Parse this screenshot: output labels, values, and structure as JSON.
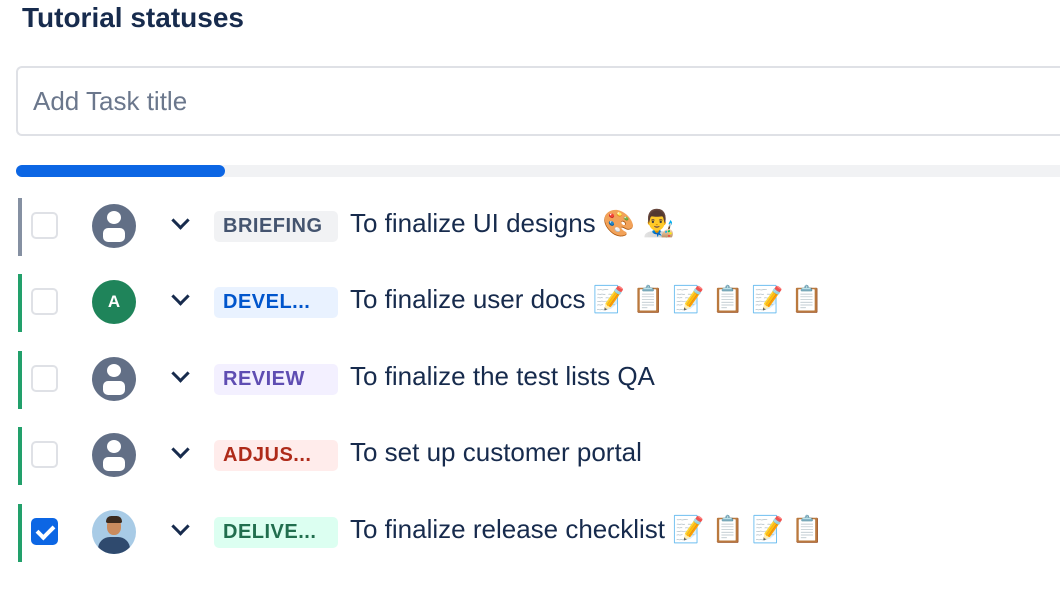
{
  "header": {
    "title": "Tutorial statuses"
  },
  "add_task": {
    "placeholder": "Add Task title",
    "value": ""
  },
  "progress": {
    "percent": 20,
    "color": "#0c66e4"
  },
  "tasks": [
    {
      "checked": false,
      "avatar": {
        "type": "default"
      },
      "status": "BRIEFING",
      "status_fg": "#44546f",
      "status_bg": "#f1f2f4",
      "bar_color": "#8590a2",
      "title": "To finalize UI designs 🎨 👨‍🎨"
    },
    {
      "checked": false,
      "avatar": {
        "type": "letter",
        "letter": "A"
      },
      "status": "DEVEL...",
      "status_fg": "#0055cc",
      "status_bg": "#e9f2ff",
      "bar_color": "#22a06b",
      "title": "To finalize user docs 📝 📋 📝 📋 📝 📋"
    },
    {
      "checked": false,
      "avatar": {
        "type": "default"
      },
      "status": "REVIEW",
      "status_fg": "#5e4db2",
      "status_bg": "#f3f0ff",
      "bar_color": "#22a06b",
      "title": "To finalize the test lists QA"
    },
    {
      "checked": false,
      "avatar": {
        "type": "default"
      },
      "status": "ADJUS...",
      "status_fg": "#ae2a19",
      "status_bg": "#ffeceb",
      "bar_color": "#22a06b",
      "title": "To set up customer portal"
    },
    {
      "checked": true,
      "avatar": {
        "type": "photo"
      },
      "status": "DELIVE...",
      "status_fg": "#216e4e",
      "status_bg": "#dcfff1",
      "bar_color": "#22a06b",
      "title": "To finalize release checklist 📝 📋 📝 📋"
    }
  ]
}
